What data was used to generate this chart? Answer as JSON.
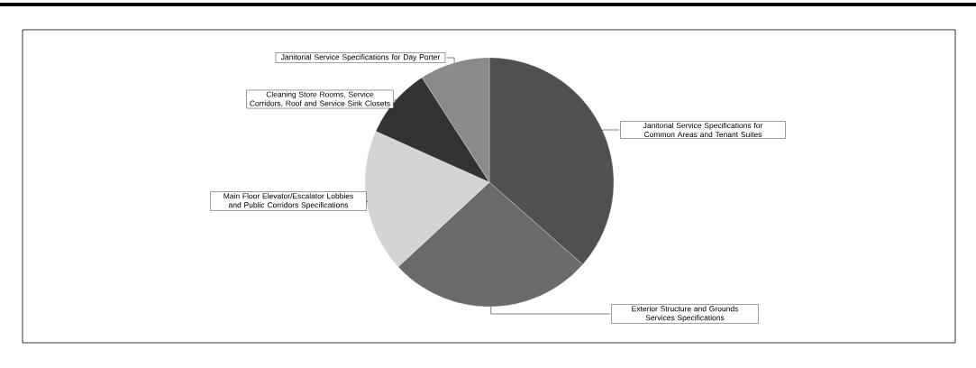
{
  "chart_data": {
    "type": "pie",
    "categories": [
      "Janitorial Service Specifications for Common Areas and Tenant Suites",
      "Exterior Structure and Grounds Services Specifications",
      "Main Floor Elevator/Escalator Lobbies and Public Corridors Specifications",
      "Cleaning Store Rooms, Service Corridors, Roof and Service Sink Closets",
      "Janitorial Service Specifications for Day Porter"
    ],
    "values": [
      36.5,
      26.6,
      18.6,
      9.2,
      9.1
    ],
    "colors": [
      "#505050",
      "#6a6a6a",
      "#d4d4d4",
      "#333333",
      "#8a8a8a"
    ],
    "legend": false
  }
}
